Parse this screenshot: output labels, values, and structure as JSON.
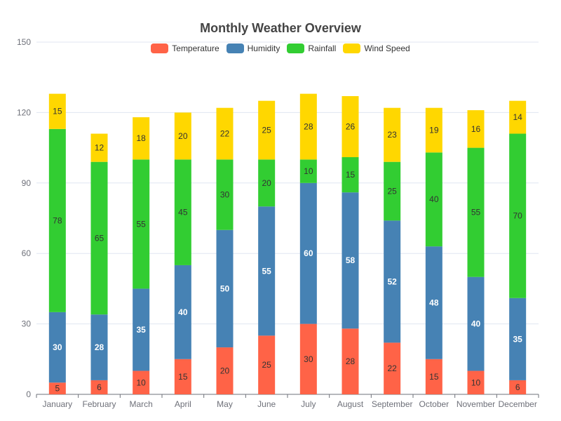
{
  "chart_data": {
    "type": "bar",
    "stacked": true,
    "title": "Monthly Weather Overview",
    "xlabel": "",
    "ylabel": "",
    "ylim": [
      0,
      150
    ],
    "yticks": [
      "0",
      "30",
      "60",
      "90",
      "120",
      "150"
    ],
    "grid": "horizontal",
    "legend_position": "top-center",
    "categories": [
      "January",
      "February",
      "March",
      "April",
      "May",
      "June",
      "July",
      "August",
      "September",
      "October",
      "November",
      "December"
    ],
    "series": [
      {
        "name": "Temperature",
        "color": "#ff6347",
        "label_color": "#333333",
        "values": [
          5,
          6,
          10,
          15,
          20,
          25,
          30,
          28,
          22,
          15,
          10,
          6
        ]
      },
      {
        "name": "Humidity",
        "color": "#4682b4",
        "label_color": "#ffffff",
        "values": [
          30,
          28,
          35,
          40,
          50,
          55,
          60,
          58,
          52,
          48,
          40,
          35
        ]
      },
      {
        "name": "Rainfall",
        "color": "#32cd32",
        "label_color": "#333333",
        "values": [
          78,
          65,
          55,
          45,
          30,
          20,
          10,
          15,
          25,
          40,
          55,
          70
        ]
      },
      {
        "name": "Wind Speed",
        "color": "#ffd700",
        "label_color": "#333333",
        "values": [
          15,
          12,
          18,
          20,
          22,
          25,
          28,
          26,
          23,
          19,
          16,
          14
        ]
      }
    ]
  }
}
